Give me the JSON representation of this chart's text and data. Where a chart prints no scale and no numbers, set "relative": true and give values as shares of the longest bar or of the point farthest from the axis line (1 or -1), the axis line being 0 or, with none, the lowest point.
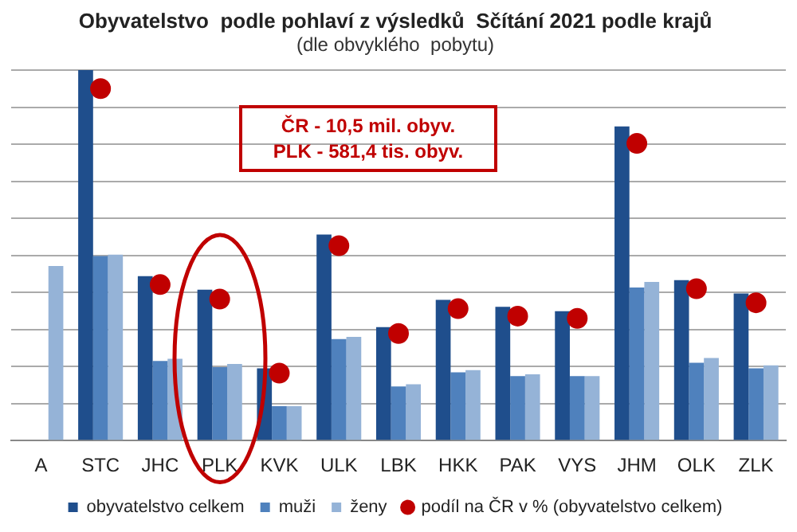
{
  "chart_data": {
    "type": "bar",
    "title": "Obyvatelstvo  podle pohlaví z výsledků  Sčítání 2021 podle krajů",
    "subtitle": "(dle obvyklého  pobytu)",
    "relative": true,
    "grid": "y",
    "legend": "bottom",
    "categories": [
      "A",
      "STC",
      "JHC",
      "PLK",
      "KVK",
      "ULK",
      "LBK",
      "HKK",
      "PAK",
      "VYS",
      "JHM",
      "OLK",
      "ZLK"
    ],
    "series": [
      {
        "name": "obyvatelstvo celkem",
        "color": "#1f4e8c",
        "values": [
          null,
          1.0,
          0.444,
          0.407,
          0.195,
          0.556,
          0.306,
          0.38,
          0.361,
          0.349,
          0.848,
          0.433,
          0.397
        ]
      },
      {
        "name": "muži",
        "color": "#4f81bd",
        "values": [
          null,
          0.498,
          0.215,
          0.198,
          0.093,
          0.274,
          0.146,
          0.184,
          0.174,
          0.174,
          0.413,
          0.21,
          0.195
        ]
      },
      {
        "name": "ženy",
        "color": "#95b3d7",
        "values": [
          0.471,
          0.502,
          0.221,
          0.207,
          0.093,
          0.28,
          0.152,
          0.19,
          0.179,
          0.174,
          0.428,
          0.223,
          0.203
        ]
      },
      {
        "name": "podíl na ČR v % (obyvatelstvo celkem)",
        "type": "scatter",
        "color": "#c00000",
        "marker": "circle",
        "x": [
          "A",
          "STC",
          "JHC",
          "PLK",
          "KVK",
          "ULK",
          "LBK",
          "HKK",
          "PAK",
          "VYS",
          "JHM",
          "OLK",
          "ZLK"
        ],
        "values": [
          null,
          0.95,
          0.421,
          0.382,
          0.182,
          0.526,
          0.289,
          0.356,
          0.336,
          0.33,
          0.802,
          0.41,
          0.372
        ]
      }
    ],
    "annotations": [
      "ČR  - 10,5 mil. obyv.",
      "PLK - 581,4 tis. obyv."
    ]
  }
}
